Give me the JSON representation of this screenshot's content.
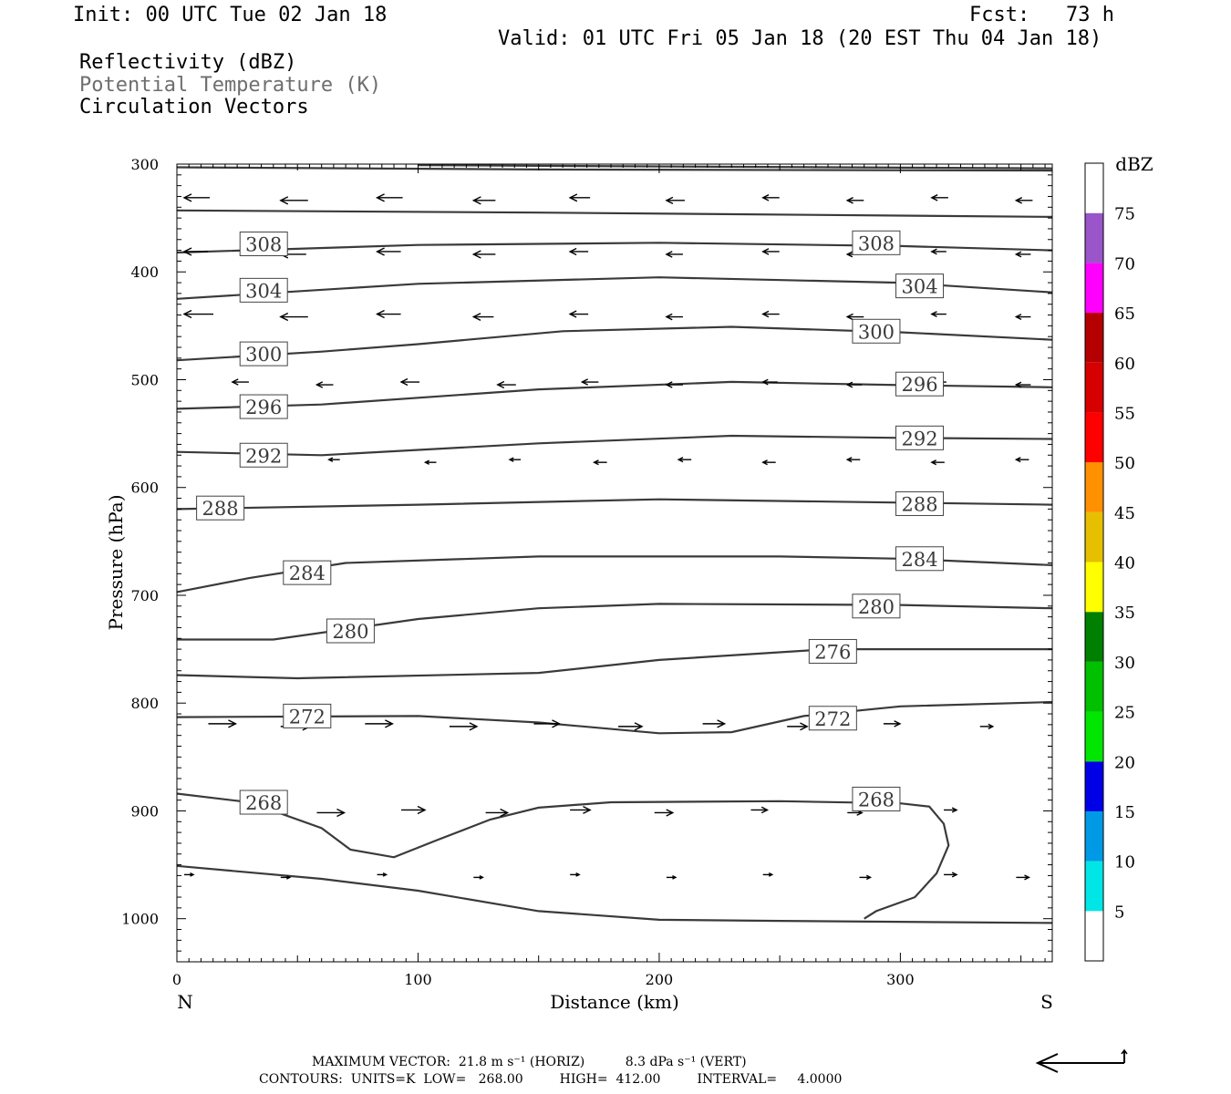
{
  "header": {
    "init": "Init: 00 UTC Tue 02 Jan 18",
    "fcst": "Fcst:   73 h",
    "valid": "Valid: 01 UTC Fri 05 Jan 18 (20 EST Thu 04 Jan 18)",
    "fields": [
      "Reflectivity (dBZ)",
      "Potential Temperature (K)",
      "Circulation Vectors"
    ],
    "field_colors": [
      "#000000",
      "#6e6e6e",
      "#000000"
    ]
  },
  "footer": {
    "line1": "MAXIMUM VECTOR:  21.8 m s⁻¹ (HORIZ)          8.3 dPa s⁻¹ (VERT)",
    "line2": "CONTOURS:  UNITS=K  LOW=   268.00         HIGH=  412.00         INTERVAL=     4.0000"
  },
  "chart_data": {
    "type": "line",
    "title": "",
    "xlabel": "Distance (km)",
    "ylabel": "Pressure (hPa)",
    "xlim": [
      0,
      363
    ],
    "ylim": [
      300,
      1040
    ],
    "y_inverted": true,
    "x_ticks": [
      0,
      100,
      200,
      300
    ],
    "y_ticks": [
      300,
      400,
      500,
      600,
      700,
      800,
      900,
      1000
    ],
    "x_end_labels": {
      "left": "N",
      "right": "S"
    },
    "series": [
      {
        "label": "",
        "points": [
          [
            0,
            303
          ],
          [
            150,
            305
          ],
          [
            363,
            306
          ]
        ]
      },
      {
        "label": "",
        "points": [
          [
            100,
            301
          ],
          [
            363,
            304
          ]
        ]
      },
      {
        "label": "",
        "points": [
          [
            0,
            343
          ],
          [
            150,
            345
          ],
          [
            363,
            349
          ]
        ]
      },
      {
        "label": "308",
        "points": [
          [
            0,
            382
          ],
          [
            100,
            375
          ],
          [
            200,
            373
          ],
          [
            300,
            376
          ],
          [
            363,
            380
          ]
        ]
      },
      {
        "label": "304",
        "points": [
          [
            0,
            425
          ],
          [
            100,
            411
          ],
          [
            200,
            405
          ],
          [
            300,
            410
          ],
          [
            363,
            419
          ]
        ]
      },
      {
        "label": "300",
        "points": [
          [
            0,
            482
          ],
          [
            60,
            474
          ],
          [
            100,
            467
          ],
          [
            160,
            455
          ],
          [
            230,
            451
          ],
          [
            300,
            456
          ],
          [
            363,
            463
          ]
        ]
      },
      {
        "label": "296",
        "points": [
          [
            0,
            527
          ],
          [
            60,
            523
          ],
          [
            150,
            509
          ],
          [
            230,
            502
          ],
          [
            300,
            505
          ],
          [
            363,
            507
          ]
        ]
      },
      {
        "label": "292",
        "points": [
          [
            0,
            567
          ],
          [
            60,
            570
          ],
          [
            150,
            559
          ],
          [
            230,
            552
          ],
          [
            300,
            554
          ],
          [
            363,
            555
          ]
        ]
      },
      {
        "label": "288",
        "points": [
          [
            0,
            620
          ],
          [
            100,
            616
          ],
          [
            200,
            611
          ],
          [
            300,
            614
          ],
          [
            363,
            616
          ]
        ]
      },
      {
        "label": "284",
        "points": [
          [
            0,
            697
          ],
          [
            30,
            684
          ],
          [
            70,
            670
          ],
          [
            150,
            664
          ],
          [
            250,
            664
          ],
          [
            300,
            666
          ],
          [
            363,
            672
          ]
        ]
      },
      {
        "label": "280",
        "points": [
          [
            0,
            741
          ],
          [
            40,
            741
          ],
          [
            100,
            722
          ],
          [
            150,
            712
          ],
          [
            200,
            708
          ],
          [
            300,
            709
          ],
          [
            363,
            712
          ]
        ]
      },
      {
        "label": "276",
        "points": [
          [
            0,
            774
          ],
          [
            50,
            777
          ],
          [
            150,
            772
          ],
          [
            200,
            760
          ],
          [
            270,
            750
          ],
          [
            363,
            750
          ]
        ]
      },
      {
        "label": "272",
        "points": [
          [
            0,
            813
          ],
          [
            100,
            812
          ],
          [
            150,
            818
          ],
          [
            200,
            828
          ],
          [
            230,
            827
          ],
          [
            260,
            812
          ],
          [
            300,
            803
          ],
          [
            363,
            799
          ]
        ]
      },
      {
        "label": "268",
        "points": [
          [
            0,
            884
          ],
          [
            30,
            892
          ],
          [
            60,
            916
          ],
          [
            72,
            936
          ],
          [
            90,
            943
          ],
          [
            108,
            927
          ],
          [
            130,
            908
          ],
          [
            150,
            897
          ],
          [
            180,
            892
          ],
          [
            250,
            891
          ],
          [
            300,
            893
          ],
          [
            312,
            896
          ],
          [
            318,
            912
          ],
          [
            320,
            932
          ],
          [
            315,
            958
          ],
          [
            306,
            980
          ],
          [
            290,
            993
          ],
          [
            285,
            1000
          ]
        ]
      },
      {
        "label": "",
        "points": [
          [
            0,
            951
          ],
          [
            60,
            963
          ],
          [
            100,
            974
          ],
          [
            150,
            993
          ],
          [
            200,
            1001
          ],
          [
            250,
            1002
          ],
          [
            363,
            1004
          ]
        ]
      }
    ],
    "vectors": {
      "rows": [
        {
          "p": 332,
          "x": [
            0,
            40,
            80,
            120,
            160,
            200,
            240,
            275,
            310,
            345
          ],
          "dir": "left",
          "len": [
            28,
            30,
            28,
            24,
            22,
            20,
            18,
            18,
            18,
            18
          ]
        },
        {
          "p": 382,
          "x": [
            0,
            40,
            80,
            120,
            160,
            200,
            240,
            275,
            310,
            345
          ],
          "dir": "left",
          "len": [
            26,
            28,
            26,
            24,
            20,
            18,
            18,
            16,
            16,
            16
          ]
        },
        {
          "p": 440,
          "x": [
            0,
            40,
            80,
            120,
            160,
            200,
            240,
            275,
            310,
            345
          ],
          "dir": "left",
          "len": [
            32,
            30,
            26,
            22,
            20,
            18,
            18,
            18,
            16,
            16
          ]
        },
        {
          "p": 503,
          "x": [
            20,
            55,
            90,
            130,
            165,
            200,
            240,
            275,
            310,
            345
          ],
          "dir": "left",
          "len": [
            18,
            18,
            20,
            20,
            18,
            18,
            16,
            16,
            16,
            16
          ]
        },
        {
          "p": 575,
          "x": [
            60,
            100,
            135,
            170,
            205,
            240,
            275,
            310,
            345
          ],
          "dir": "left",
          "len": [
            12,
            12,
            12,
            14,
            14,
            14,
            14,
            14,
            14
          ]
        },
        {
          "p": 820,
          "x": [
            10,
            40,
            75,
            110,
            145,
            180,
            215,
            250,
            290,
            330
          ],
          "dir": "right",
          "len": [
            30,
            32,
            30,
            30,
            28,
            26,
            24,
            22,
            18,
            14
          ]
        },
        {
          "p": 900,
          "x": [
            25,
            55,
            90,
            125,
            160,
            195,
            235,
            275,
            315
          ],
          "dir": "right",
          "len": [
            28,
            30,
            26,
            24,
            22,
            20,
            18,
            16,
            14
          ]
        },
        {
          "p": 960,
          "x": [
            0,
            40,
            80,
            120,
            160,
            200,
            240,
            280,
            315,
            345
          ],
          "dir": "right",
          "len": [
            10,
            10,
            10,
            10,
            10,
            10,
            10,
            12,
            14,
            14
          ]
        }
      ]
    },
    "colorbar": {
      "label": "dBZ",
      "ticks": [
        "5",
        "10",
        "15",
        "20",
        "25",
        "30",
        "35",
        "40",
        "45",
        "50",
        "55",
        "60",
        "65",
        "70",
        "75"
      ],
      "colors": [
        "#ffffff",
        "#00e6e6",
        "#0099e6",
        "#0000e6",
        "#00e600",
        "#00c000",
        "#008000",
        "#ffff00",
        "#e6c000",
        "#ff9000",
        "#ff0000",
        "#d60000",
        "#b40000",
        "#ff00ff",
        "#9955c9",
        "#ffffff"
      ]
    },
    "legend": "none",
    "grid": false
  }
}
